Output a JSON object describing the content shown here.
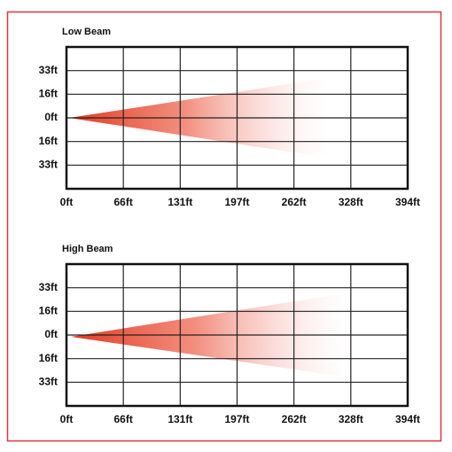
{
  "panels": [
    {
      "title": "Low Beam",
      "y_labels": [
        "33ft",
        "16ft",
        "0ft",
        "16ft",
        "33ft"
      ],
      "x_labels": [
        "0ft",
        "66ft",
        "131ft",
        "197ft",
        "262ft",
        "328ft",
        "394ft"
      ]
    },
    {
      "title": "High Beam",
      "y_labels": [
        "33ft",
        "16ft",
        "0ft",
        "16ft",
        "33ft"
      ],
      "x_labels": [
        "0ft",
        "66ft",
        "131ft",
        "197ft",
        "262ft",
        "328ft",
        "394ft"
      ]
    }
  ]
}
